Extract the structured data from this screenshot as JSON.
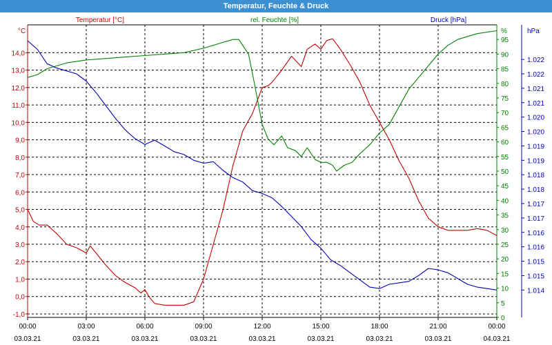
{
  "window_title": "Temperatur, Feuchte & Druck",
  "colors": {
    "temperature": "#c00000",
    "humidity": "#008000",
    "pressure": "#0000b4",
    "titlebar": "#3c8fd1",
    "grid": "#000000"
  },
  "chart_data": {
    "type": "line",
    "title": "Temperatur, Feuchte & Druck",
    "grid": true,
    "x_ticks": [
      {
        "time": "00:00",
        "date": "03.03.21"
      },
      {
        "time": "03:00",
        "date": "03.03.21"
      },
      {
        "time": "06:00",
        "date": "03.03.21"
      },
      {
        "time": "09:00",
        "date": "03.03.21"
      },
      {
        "time": "12:00",
        "date": "03.03.21"
      },
      {
        "time": "15:00",
        "date": "03.03.21"
      },
      {
        "time": "18:00",
        "date": "03.03.21"
      },
      {
        "time": "21:00",
        "date": "03.03.21"
      },
      {
        "time": "00:00",
        "date": "04.03.21"
      }
    ],
    "x_range_hours": [
      0,
      24
    ],
    "axes": {
      "left": {
        "label": "Temperatur [°C]",
        "unit": "°C",
        "range": [
          -1.2,
          15.6
        ],
        "ticks": [
          "14,0",
          "13,0",
          "12,0",
          "11,0",
          "10,0",
          "9,0",
          "8,0",
          "7,0",
          "6,0",
          "5,0",
          "4,0",
          "3,0",
          "2,0",
          "1,0",
          "0,0",
          "-1,0"
        ],
        "tick_values": [
          14,
          13,
          12,
          11,
          10,
          9,
          8,
          7,
          6,
          5,
          4,
          3,
          2,
          1,
          0,
          -1
        ]
      },
      "right1": {
        "label": "rel. Feuchte [%]",
        "unit": "%",
        "range": [
          0,
          100
        ],
        "ticks": [
          "95",
          "90",
          "85",
          "80",
          "75",
          "70",
          "65",
          "60",
          "55",
          "50",
          "45",
          "40",
          "35",
          "30",
          "25",
          "20",
          "15",
          "10",
          "5",
          "0"
        ],
        "tick_values": [
          95,
          90,
          85,
          80,
          75,
          70,
          65,
          60,
          55,
          50,
          45,
          40,
          35,
          30,
          25,
          20,
          15,
          10,
          5,
          0
        ]
      },
      "right2": {
        "label": "Druck [hPa]",
        "unit": "hPa",
        "range": [
          1013.55,
          1023.7
        ],
        "ticks": [
          "1.022",
          "1.022",
          "1.021",
          "1.021",
          "1.020",
          "1.020",
          "1.019",
          "1.019",
          "1.018",
          "1.018",
          "1.017",
          "1.017",
          "1.016",
          "1.016",
          "1.015",
          "1.015",
          "1.014"
        ],
        "tick_values": [
          1022.5,
          1022.0,
          1021.5,
          1021.0,
          1020.5,
          1020.0,
          1019.5,
          1019.0,
          1018.5,
          1018.0,
          1017.5,
          1017.0,
          1016.5,
          1016.0,
          1015.5,
          1015.0,
          1014.5
        ]
      }
    },
    "series": [
      {
        "name": "Temperatur [°C]",
        "axis": "left",
        "color": "#c00000",
        "x": [
          0,
          0.3,
          0.6,
          1,
          1.5,
          2,
          2.5,
          3,
          3.2,
          3.5,
          4,
          4.5,
          5,
          5.5,
          5.8,
          6,
          6.2,
          6.5,
          7,
          7.5,
          8,
          8.5,
          9,
          9.5,
          10,
          10.5,
          11,
          11.5,
          12,
          12.3,
          12.5,
          13,
          13.5,
          14,
          14.3,
          14.7,
          15,
          15.3,
          15.6,
          16,
          16.5,
          17,
          17.5,
          18,
          18.5,
          19,
          19.5,
          20,
          20.5,
          21,
          21.5,
          22,
          22.5,
          23,
          23.5,
          24
        ],
        "values": [
          5.0,
          4.3,
          4.1,
          4.1,
          3.6,
          3.0,
          2.8,
          2.5,
          2.9,
          2.5,
          1.8,
          1.2,
          0.8,
          0.5,
          0.2,
          0.4,
          0.0,
          -0.4,
          -0.5,
          -0.5,
          -0.5,
          -0.3,
          1.0,
          3.0,
          5.0,
          7.5,
          9.5,
          10.5,
          12.0,
          12.1,
          12.3,
          13.0,
          13.8,
          13.2,
          14.2,
          14.5,
          14.2,
          14.7,
          14.8,
          14.2,
          13.3,
          12.3,
          11.0,
          10.0,
          9.0,
          7.8,
          6.8,
          5.5,
          4.5,
          4.0,
          3.8,
          3.8,
          3.8,
          3.9,
          3.8,
          3.5
        ]
      },
      {
        "name": "rel. Feuchte [%]",
        "axis": "right1",
        "color": "#008000",
        "x": [
          0,
          0.5,
          1,
          1.5,
          2,
          3,
          4,
          5,
          6,
          7,
          8,
          9,
          10,
          10.5,
          10.8,
          11,
          11.3,
          11.6,
          12,
          12.3,
          12.6,
          13,
          13.3,
          13.7,
          14,
          14.3,
          14.7,
          15,
          15.3,
          15.6,
          15.8,
          16.2,
          16.6,
          17,
          17.5,
          18,
          18.5,
          19,
          19.5,
          20,
          20.5,
          21,
          21.5,
          22,
          23,
          24
        ],
        "values": [
          82,
          83,
          85,
          86,
          87,
          88,
          88.5,
          89,
          89.5,
          90,
          90.5,
          92,
          94,
          95,
          95,
          93,
          90,
          80,
          66,
          61,
          59,
          62,
          58,
          57,
          55,
          58,
          54,
          53,
          53,
          52,
          50,
          52,
          53,
          56,
          59,
          63,
          66,
          72,
          78,
          82,
          86,
          90,
          93,
          95,
          97,
          98
        ]
      },
      {
        "name": "Druck [hPa]",
        "axis": "right2",
        "color": "#0000b4",
        "x": [
          0,
          0.5,
          1,
          1.5,
          2,
          2.5,
          3,
          3.5,
          4,
          4.5,
          5,
          5.5,
          6,
          6.5,
          7,
          7.5,
          8,
          8.5,
          9,
          9.5,
          10,
          10.5,
          11,
          11.5,
          12,
          12.5,
          13,
          13.5,
          14,
          14.5,
          15,
          15.5,
          16,
          16.5,
          17,
          17.5,
          18,
          18.5,
          19,
          19.5,
          20,
          20.5,
          21,
          21.5,
          22,
          22.5,
          23,
          23.5,
          24
        ],
        "values": [
          1023.15,
          1022.85,
          1022.35,
          1022.2,
          1022.1,
          1022.0,
          1021.75,
          1021.35,
          1020.9,
          1020.45,
          1020.05,
          1019.75,
          1019.55,
          1019.7,
          1019.5,
          1019.3,
          1019.2,
          1019.0,
          1018.9,
          1018.95,
          1018.65,
          1018.4,
          1018.25,
          1017.95,
          1017.85,
          1017.7,
          1017.4,
          1017.05,
          1016.7,
          1016.25,
          1015.95,
          1015.55,
          1015.35,
          1015.1,
          1014.85,
          1014.6,
          1014.55,
          1014.7,
          1014.75,
          1014.8,
          1015.0,
          1015.25,
          1015.2,
          1015.1,
          1014.9,
          1014.7,
          1014.6,
          1014.55,
          1014.5
        ]
      }
    ]
  }
}
